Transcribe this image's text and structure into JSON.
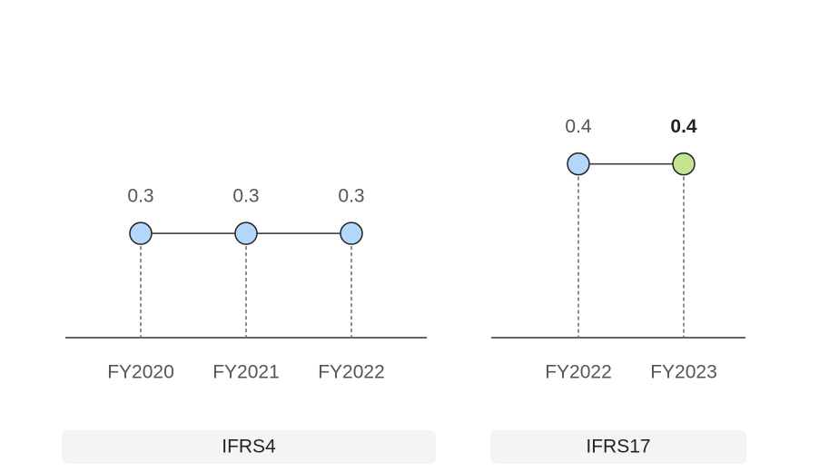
{
  "chart_data": [
    {
      "type": "line",
      "title": "IFRS4",
      "categories": [
        "FY2020",
        "FY2021",
        "FY2022"
      ],
      "values": [
        0.3,
        0.3,
        0.3
      ],
      "color": "#b3d7fb",
      "point_colors": [
        "#b3d7fb",
        "#b3d7fb",
        "#b3d7fb"
      ],
      "ylim": [
        0.15,
        0.5
      ]
    },
    {
      "type": "line",
      "title": "IFRS17",
      "categories": [
        "FY2022",
        "FY2023"
      ],
      "values": [
        0.4,
        0.4
      ],
      "color": "#b3d7fb",
      "point_colors": [
        "#b3d7fb",
        "#c5e48f"
      ],
      "ylim": [
        0.15,
        0.5
      ]
    }
  ]
}
